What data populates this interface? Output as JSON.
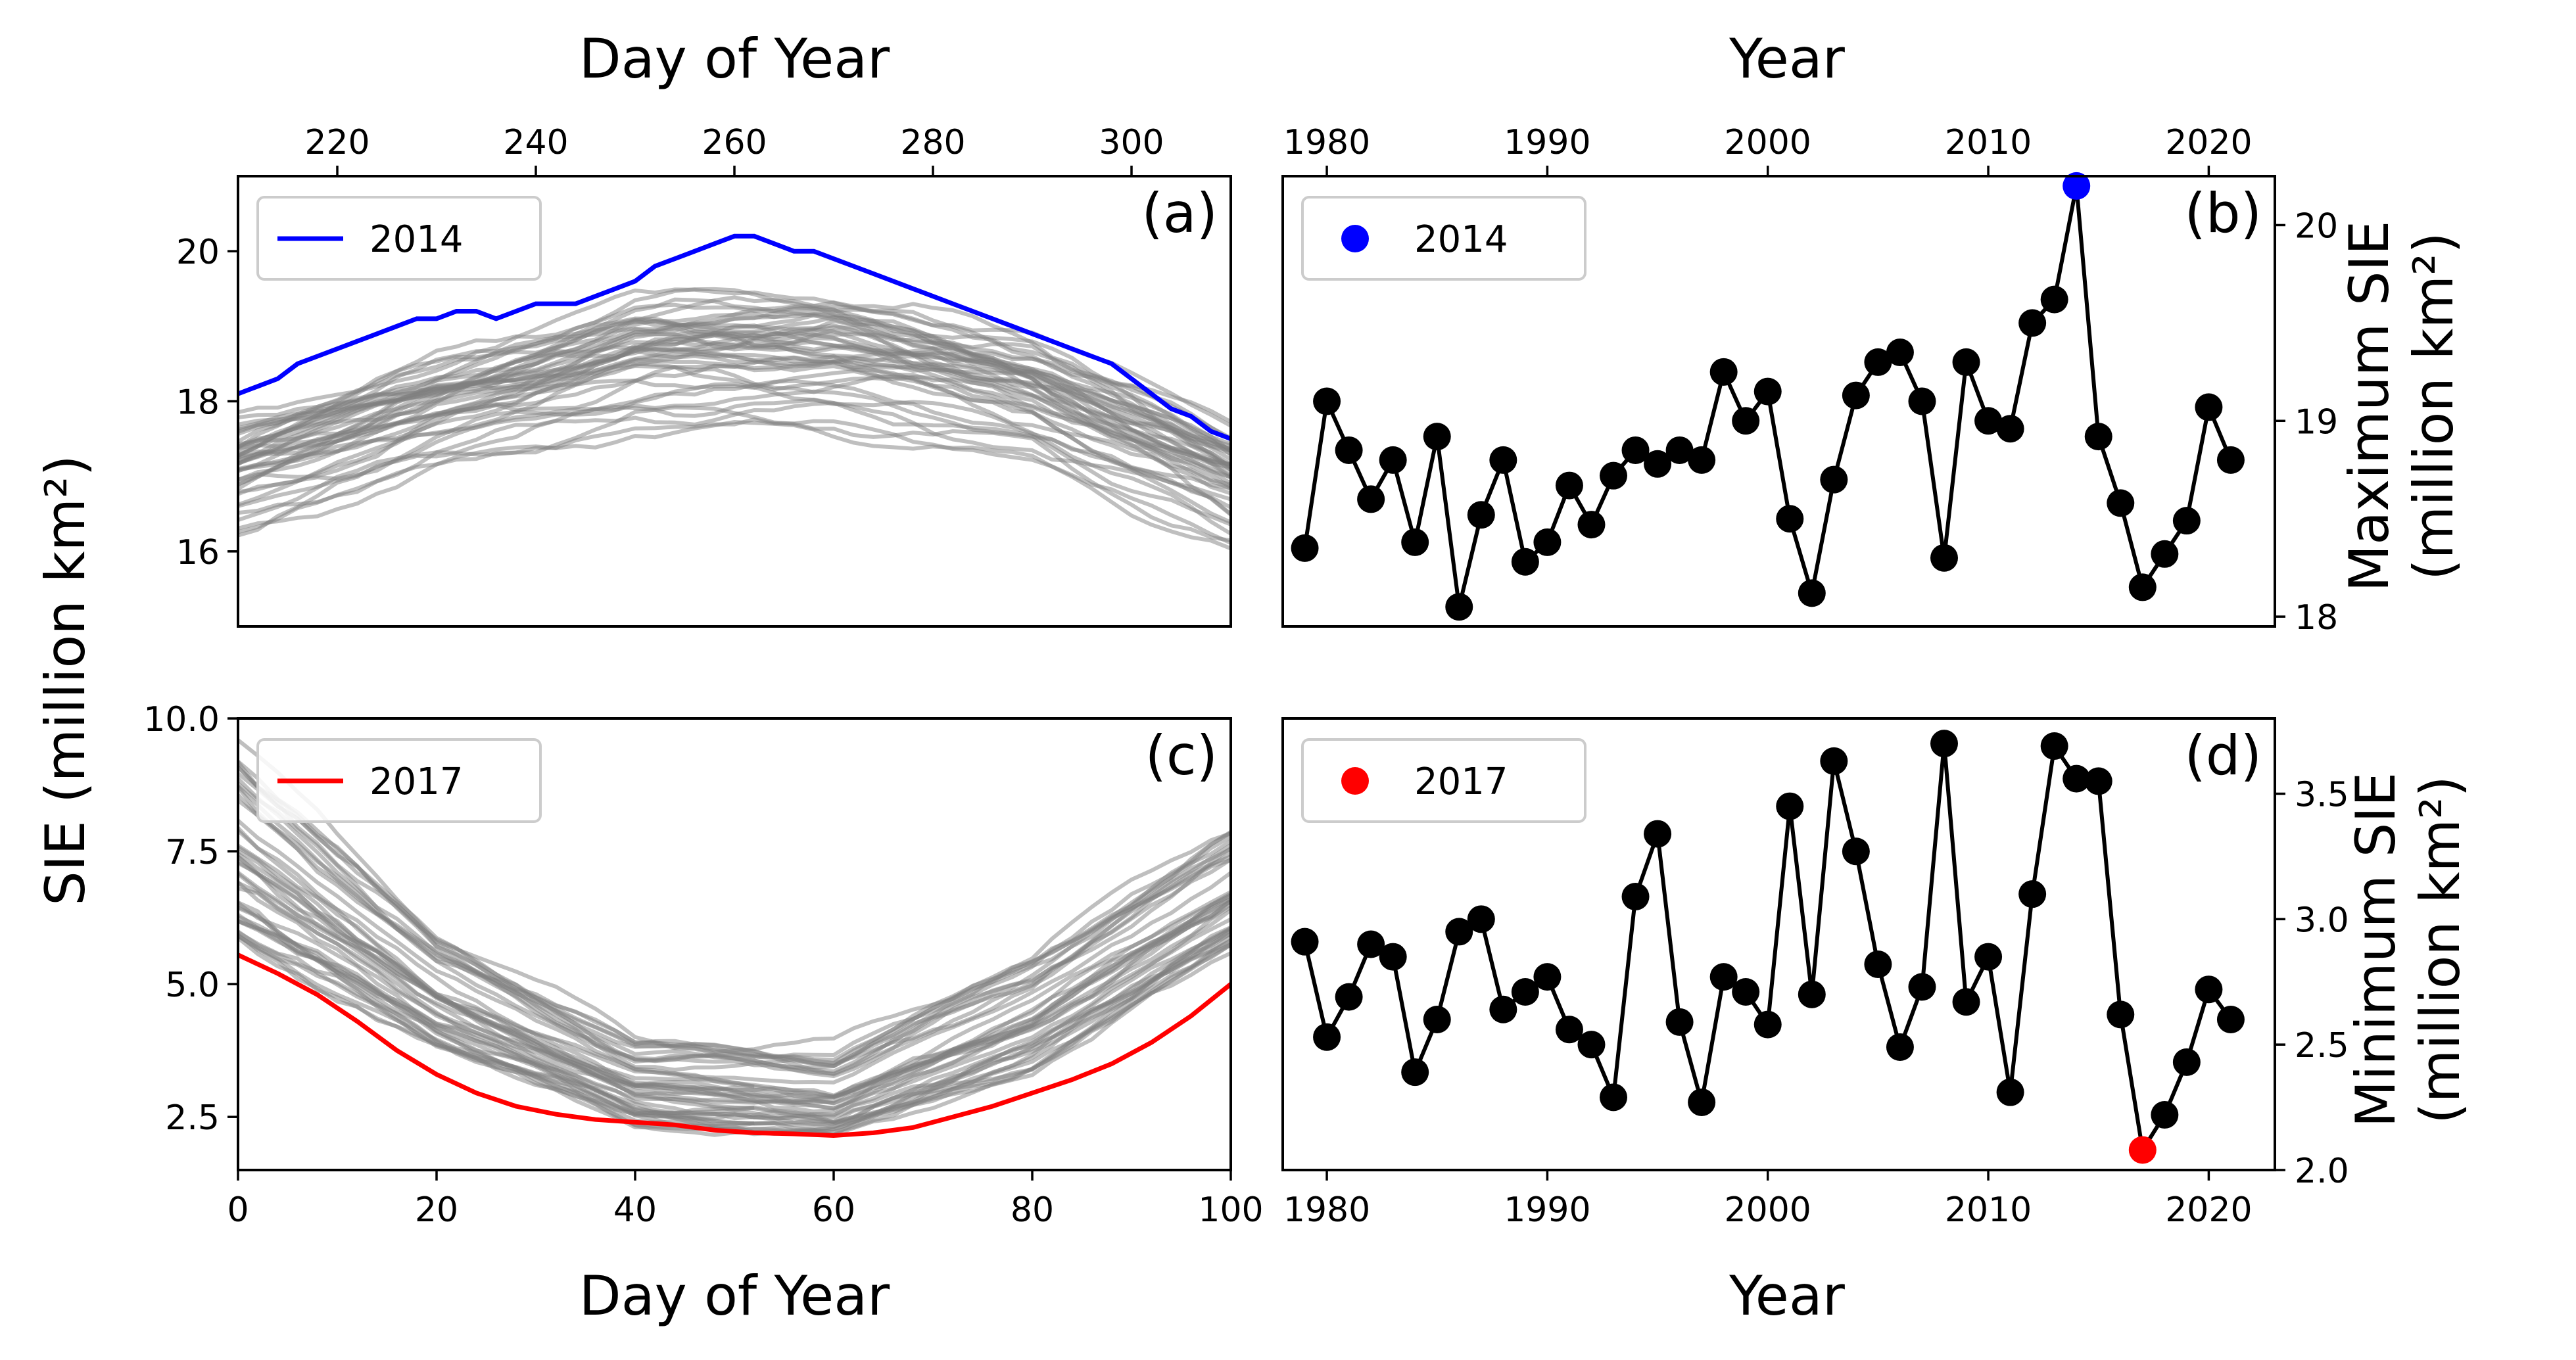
{
  "figure": {
    "left_ylabel": "SIE (million km²)",
    "colors": {
      "highlight_max": "#0000ff",
      "highlight_min": "#ff0000",
      "ensemble": "#808080",
      "series": "#000000"
    }
  },
  "chart_data": [
    {
      "panel": "(a)",
      "type": "line",
      "xlabel": "Day of Year",
      "xlabel_position": "top",
      "ylabel": "",
      "xlim": [
        210,
        310
      ],
      "ylim": [
        15,
        21
      ],
      "xticks": [
        220,
        240,
        260,
        280,
        300
      ],
      "yticks": [
        16,
        18,
        20
      ],
      "legend": {
        "label": "2014",
        "placement": "top-left"
      },
      "highlight": {
        "name": "2014",
        "color": "#0000ff",
        "x": [
          210,
          212,
          214,
          216,
          218,
          220,
          222,
          224,
          226,
          228,
          230,
          232,
          234,
          236,
          238,
          240,
          242,
          244,
          246,
          248,
          250,
          252,
          254,
          256,
          258,
          260,
          262,
          264,
          266,
          268,
          270,
          272,
          274,
          276,
          278,
          280,
          282,
          284,
          286,
          288,
          290,
          292,
          294,
          296,
          298,
          300,
          302,
          304,
          306,
          308,
          310
        ],
        "y": [
          18.1,
          18.2,
          18.3,
          18.5,
          18.6,
          18.7,
          18.8,
          18.9,
          19.0,
          19.1,
          19.1,
          19.2,
          19.2,
          19.1,
          19.2,
          19.3,
          19.3,
          19.3,
          19.4,
          19.5,
          19.6,
          19.8,
          19.9,
          20.0,
          20.1,
          20.2,
          20.2,
          20.1,
          20.0,
          20.0,
          19.9,
          19.8,
          19.7,
          19.6,
          19.5,
          19.4,
          19.3,
          19.2,
          19.1,
          19.0,
          18.9,
          18.8,
          18.7,
          18.6,
          18.5,
          18.3,
          18.1,
          17.9,
          17.8,
          17.6,
          17.5
        ]
      },
      "ensemble": {
        "description_count": 43,
        "color": "#808080",
        "envelope_days": [
          210,
          230,
          250,
          270,
          290,
          310
        ],
        "envelope_low": [
          16.2,
          17.1,
          17.6,
          17.6,
          17.2,
          16.0
        ],
        "envelope_high": [
          17.8,
          18.6,
          19.4,
          19.5,
          18.9,
          17.7
        ]
      }
    },
    {
      "panel": "(b)",
      "type": "line",
      "xlabel": "Year",
      "xlabel_position": "top",
      "ylabel": "Maximum SIE\n(million km²)",
      "ylabel_position": "right",
      "xlim": [
        1978,
        2023
      ],
      "ylim": [
        17.95,
        20.25
      ],
      "xticks": [
        1980,
        1990,
        2000,
        2010,
        2020
      ],
      "yticks": [
        18,
        19,
        20
      ],
      "legend": {
        "label": "2014",
        "placement": "top-left"
      },
      "highlight": {
        "name": "2014",
        "x": 2014,
        "y": 20.2,
        "color": "#0000ff"
      },
      "x": [
        1979,
        1980,
        1981,
        1982,
        1983,
        1984,
        1985,
        1986,
        1987,
        1988,
        1989,
        1990,
        1991,
        1992,
        1993,
        1994,
        1995,
        1996,
        1997,
        1998,
        1999,
        2000,
        2001,
        2002,
        2003,
        2004,
        2005,
        2006,
        2007,
        2008,
        2009,
        2010,
        2011,
        2012,
        2013,
        2014,
        2015,
        2016,
        2017,
        2018,
        2019,
        2020,
        2021
      ],
      "y": [
        18.35,
        19.1,
        18.85,
        18.6,
        18.8,
        18.38,
        18.92,
        18.05,
        18.52,
        18.8,
        18.28,
        18.38,
        18.67,
        18.47,
        18.72,
        18.85,
        18.78,
        18.85,
        18.8,
        19.25,
        19.0,
        19.15,
        18.5,
        18.12,
        18.7,
        19.13,
        19.3,
        19.35,
        19.1,
        18.3,
        19.3,
        19.0,
        18.96,
        19.5,
        19.62,
        20.2,
        18.92,
        18.58,
        18.15,
        18.32,
        18.49,
        19.07,
        18.8
      ]
    },
    {
      "panel": "(c)",
      "type": "line",
      "xlabel": "Day of Year",
      "ylabel": "",
      "xlim": [
        0,
        100
      ],
      "ylim": [
        1.5,
        10.0
      ],
      "xticks": [
        0,
        20,
        40,
        60,
        80,
        100
      ],
      "yticks": [
        2.5,
        5.0,
        7.5,
        10.0
      ],
      "legend": {
        "label": "2017",
        "placement": "top-left"
      },
      "highlight": {
        "name": "2017",
        "color": "#ff0000",
        "x": [
          0,
          4,
          8,
          12,
          16,
          20,
          24,
          28,
          32,
          36,
          40,
          44,
          48,
          52,
          56,
          60,
          64,
          68,
          72,
          76,
          80,
          84,
          88,
          92,
          96,
          100
        ],
        "y": [
          5.55,
          5.2,
          4.8,
          4.3,
          3.75,
          3.3,
          2.95,
          2.7,
          2.55,
          2.45,
          2.4,
          2.35,
          2.25,
          2.2,
          2.18,
          2.15,
          2.2,
          2.3,
          2.5,
          2.7,
          2.95,
          3.2,
          3.5,
          3.9,
          4.4,
          5.0
        ]
      },
      "ensemble": {
        "description_count": 43,
        "color": "#808080",
        "envelope_days": [
          0,
          20,
          40,
          60,
          80,
          100
        ],
        "envelope_low": [
          5.8,
          3.8,
          2.4,
          2.1,
          3.4,
          5.6
        ],
        "envelope_high": [
          9.5,
          6.0,
          4.0,
          3.8,
          5.6,
          8.0
        ]
      }
    },
    {
      "panel": "(d)",
      "type": "line",
      "xlabel": "Year",
      "ylabel": "Minimum SIE\n(million km²)",
      "ylabel_position": "right",
      "xlim": [
        1978,
        2023
      ],
      "ylim": [
        2.0,
        3.8
      ],
      "xticks": [
        1980,
        1990,
        2000,
        2010,
        2020
      ],
      "yticks": [
        2.0,
        2.5,
        3.0,
        3.5
      ],
      "legend": {
        "label": "2017",
        "placement": "top-left"
      },
      "highlight": {
        "name": "2017",
        "x": 2017,
        "y": 2.08,
        "color": "#ff0000"
      },
      "x": [
        1979,
        1980,
        1981,
        1982,
        1983,
        1984,
        1985,
        1986,
        1987,
        1988,
        1989,
        1990,
        1991,
        1992,
        1993,
        1994,
        1995,
        1996,
        1997,
        1998,
        1999,
        2000,
        2001,
        2002,
        2003,
        2004,
        2005,
        2006,
        2007,
        2008,
        2009,
        2010,
        2011,
        2012,
        2013,
        2014,
        2015,
        2016,
        2017,
        2018,
        2019,
        2020,
        2021
      ],
      "y": [
        2.91,
        2.53,
        2.69,
        2.9,
        2.85,
        2.39,
        2.6,
        2.95,
        3.0,
        2.64,
        2.71,
        2.77,
        2.56,
        2.5,
        2.29,
        3.09,
        3.34,
        2.59,
        2.27,
        2.77,
        2.71,
        2.58,
        3.45,
        2.7,
        3.63,
        3.27,
        2.82,
        2.49,
        2.73,
        3.7,
        2.67,
        2.85,
        2.31,
        3.1,
        3.69,
        3.56,
        3.55,
        2.62,
        2.08,
        2.22,
        2.43,
        2.72,
        2.6
      ]
    }
  ],
  "panel_labels": {
    "a": "(a)",
    "b": "(b)",
    "c": "(c)",
    "d": "(d)"
  },
  "axis_text": {
    "a_top_xlabel": "Day of Year",
    "b_top_xlabel": "Year",
    "b_right_ylabel_1": "Maximum SIE",
    "b_right_ylabel_2": "(million km²)",
    "c_bottom_xlabel": "Day of Year",
    "d_bottom_xlabel": "Year",
    "d_right_ylabel_1": "Minimum SIE",
    "d_right_ylabel_2": "(million km²)",
    "left_ylabel": "SIE (million km²)"
  }
}
